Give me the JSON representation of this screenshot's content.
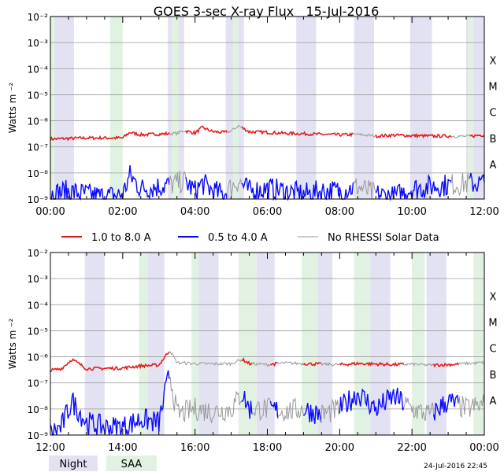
{
  "title": "GOES 3-sec X-ray Flux   15-Jul-2016",
  "ylabel": "Watts m",
  "ylabel_sup": "-2",
  "timestamp": "24-Jul-2016 22:45",
  "flare_classes": [
    "X",
    "M",
    "C",
    "B",
    "A"
  ],
  "legend": [
    {
      "label": "1.0 to 8.0 A",
      "color": "#e41c1c"
    },
    {
      "label": "0.5 to 4.0 A",
      "color": "#0a0aff"
    },
    {
      "label": "No RHESSI Solar Data",
      "color": "#999999"
    }
  ],
  "shading_legend": {
    "night": {
      "label": "Night",
      "color": "#e2e2f2"
    },
    "saa": {
      "label": "SAA",
      "color": "#e2f2e2"
    }
  },
  "chart_data": [
    {
      "type": "line",
      "panel": "top",
      "x_range_hours": [
        0,
        12
      ],
      "ylim_log10": [
        -9,
        -2
      ],
      "x_ticks": [
        "00:00",
        "02:00",
        "04:00",
        "06:00",
        "08:00",
        "10:00",
        "12:00"
      ],
      "y_tick_exponents": [
        -9,
        -8,
        -7,
        -6,
        -5,
        -4,
        -3,
        -2
      ],
      "night": [
        [
          0.1,
          0.65
        ],
        [
          3.25,
          3.7
        ],
        [
          4.85,
          5.35
        ],
        [
          6.8,
          7.35
        ],
        [
          8.4,
          8.95
        ],
        [
          9.95,
          10.55
        ],
        [
          11.5,
          12.0
        ]
      ],
      "saa": [
        [
          0.0,
          0.12
        ],
        [
          1.65,
          2.0
        ],
        [
          3.35,
          3.55
        ],
        [
          5.05,
          5.2
        ],
        [
          11.55,
          11.7
        ]
      ],
      "no_rhessi": [
        [
          3.3,
          3.75
        ],
        [
          4.9,
          5.3
        ],
        [
          8.4,
          9.0
        ],
        [
          11.1,
          11.6
        ]
      ],
      "series": [
        {
          "name": "1.0 to 8.0 A",
          "x": [
            0,
            0.5,
            1,
            1.5,
            2,
            2.2,
            2.5,
            3,
            3.5,
            3.7,
            4,
            4.2,
            4.5,
            4.8,
            5,
            5.2,
            5.5,
            6,
            6.5,
            7,
            7.5,
            8,
            8.5,
            9,
            9.5,
            10,
            10.5,
            11,
            11.5,
            12
          ],
          "y": [
            2e-07,
            2.1e-07,
            2.2e-07,
            2.2e-07,
            2.2e-07,
            3.6e-07,
            2.9e-07,
            3.1e-07,
            3.3e-07,
            4.2e-07,
            3.4e-07,
            5.5e-07,
            3.8e-07,
            3.6e-07,
            4e-07,
            6.5e-07,
            3.8e-07,
            3.6e-07,
            3.3e-07,
            3.2e-07,
            3e-07,
            2.9e-07,
            3e-07,
            2.6e-07,
            2.8e-07,
            2.7e-07,
            2.6e-07,
            2.6e-07,
            2.5e-07,
            2.9e-07
          ]
        },
        {
          "name": "0.5 to 4.0 A",
          "x": [
            0,
            0.5,
            1,
            1.5,
            2,
            2.2,
            2.5,
            3,
            3.5,
            3.7,
            4,
            4.2,
            4.5,
            4.8,
            5,
            5.2,
            5.5,
            6,
            6.5,
            7,
            7.5,
            8,
            8.5,
            9,
            9.5,
            10,
            10.5,
            11,
            11.5,
            12
          ],
          "y": [
            1.5e-09,
            2e-09,
            1.5e-09,
            1.2e-09,
            1.5e-09,
            8e-09,
            2.5e-09,
            3e-09,
            4e-09,
            5e-09,
            2e-09,
            4e-09,
            2e-09,
            1.5e-09,
            3e-09,
            5e-09,
            2e-09,
            2.5e-09,
            2e-09,
            1.5e-09,
            2e-09,
            2e-09,
            3e-09,
            1.5e-09,
            1.2e-09,
            2.5e-09,
            3e-09,
            3.5e-09,
            4e-09,
            4e-09
          ]
        }
      ]
    },
    {
      "type": "line",
      "panel": "bottom",
      "x_range_hours": [
        12,
        24
      ],
      "ylim_log10": [
        -9,
        -2
      ],
      "x_ticks": [
        "12:00",
        "14:00",
        "16:00",
        "18:00",
        "20:00",
        "22:00",
        "00:00"
      ],
      "y_tick_exponents": [
        -9,
        -8,
        -7,
        -6,
        -5,
        -4,
        -3,
        -2
      ],
      "night": [
        [
          12.95,
          13.5
        ],
        [
          14.55,
          15.15
        ],
        [
          16.1,
          16.65
        ],
        [
          17.7,
          18.2
        ],
        [
          19.25,
          19.8
        ],
        [
          20.85,
          21.4
        ],
        [
          22.4,
          22.95
        ]
      ],
      "saa": [
        [
          14.45,
          14.7
        ],
        [
          15.9,
          16.1
        ],
        [
          17.2,
          17.7
        ],
        [
          18.95,
          19.4
        ],
        [
          20.4,
          20.85
        ],
        [
          22.0,
          22.35
        ],
        [
          23.7,
          24.0
        ]
      ],
      "no_rhessi": [
        [
          15.3,
          17.3
        ],
        [
          17.6,
          18.1
        ],
        [
          18.3,
          19.0
        ],
        [
          19.5,
          20.0
        ],
        [
          21.8,
          22.6
        ],
        [
          23.3,
          24.0
        ]
      ],
      "series": [
        {
          "name": "1.0 to 8.0 A",
          "x": [
            12,
            12.3,
            12.6,
            13,
            13.5,
            14,
            14.5,
            15,
            15.3,
            15.5,
            16,
            16.5,
            17,
            17.3,
            17.5,
            18,
            18.5,
            19,
            19.5,
            20,
            20.5,
            21,
            21.5,
            22,
            22.5,
            23,
            23.5,
            24
          ],
          "y": [
            3e-07,
            3.5e-07,
            8e-07,
            3.5e-07,
            3.6e-07,
            3.7e-07,
            4.5e-07,
            4.8e-07,
            1.8e-06,
            6e-07,
            5.5e-07,
            5.3e-07,
            5.5e-07,
            8e-07,
            5.5e-07,
            5e-07,
            5.8e-07,
            5.5e-07,
            5.2e-07,
            5e-07,
            5.5e-07,
            5.3e-07,
            5e-07,
            5.2e-07,
            4.8e-07,
            5e-07,
            5.5e-07,
            6e-07
          ]
        },
        {
          "name": "0.5 to 4.0 A",
          "x": [
            12,
            12.3,
            12.6,
            13,
            13.5,
            14,
            14.5,
            15,
            15.3,
            15.5,
            16,
            16.5,
            17,
            17.3,
            17.5,
            18,
            18.5,
            19,
            19.5,
            20,
            20.5,
            21,
            21.5,
            22,
            22.5,
            23,
            23.5,
            24
          ],
          "y": [
            1.2e-09,
            2e-09,
            2e-08,
            3e-09,
            2e-09,
            2e-09,
            4e-09,
            3e-09,
            2.5e-07,
            6e-09,
            1e-08,
            8e-09,
            1e-08,
            4e-08,
            1e-08,
            1e-08,
            8e-09,
            1e-08,
            6e-09,
            1e-08,
            4e-08,
            1e-08,
            3e-08,
            1e-08,
            6e-09,
            2e-08,
            1e-08,
            1.5e-08
          ]
        }
      ]
    }
  ]
}
